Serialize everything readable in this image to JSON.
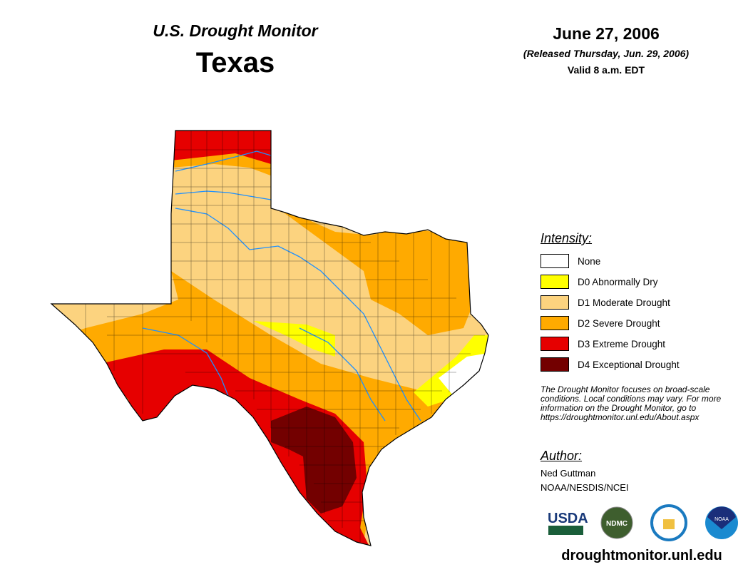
{
  "header": {
    "title": "U.S. Drought Monitor",
    "region": "Texas",
    "date": "June 27, 2006",
    "released": "(Released Thursday, Jun. 29, 2006)",
    "valid": "Valid 8 a.m. EDT"
  },
  "legend": {
    "title": "Intensity:",
    "items": [
      {
        "label": "None",
        "color": "#ffffff"
      },
      {
        "label": "D0 Abnormally Dry",
        "color": "#ffff00"
      },
      {
        "label": "D1 Moderate Drought",
        "color": "#fcd37f"
      },
      {
        "label": "D2 Severe Drought",
        "color": "#ffaa00"
      },
      {
        "label": "D3 Extreme Drought",
        "color": "#e60000"
      },
      {
        "label": "D4 Exceptional Drought",
        "color": "#730000"
      }
    ]
  },
  "note": "The Drought Monitor focuses on broad-scale conditions. Local conditions may vary. For more information on the Drought Monitor, go to https://droughtmonitor.unl.edu/About.aspx",
  "author": {
    "title": "Author:",
    "name": "Ned Guttman",
    "org": "NOAA/NESDIS/NCEI"
  },
  "logos": [
    "USDA",
    "NDMC",
    "DOC",
    "NOAA"
  ],
  "url": "droughtmonitor.unl.edu"
}
